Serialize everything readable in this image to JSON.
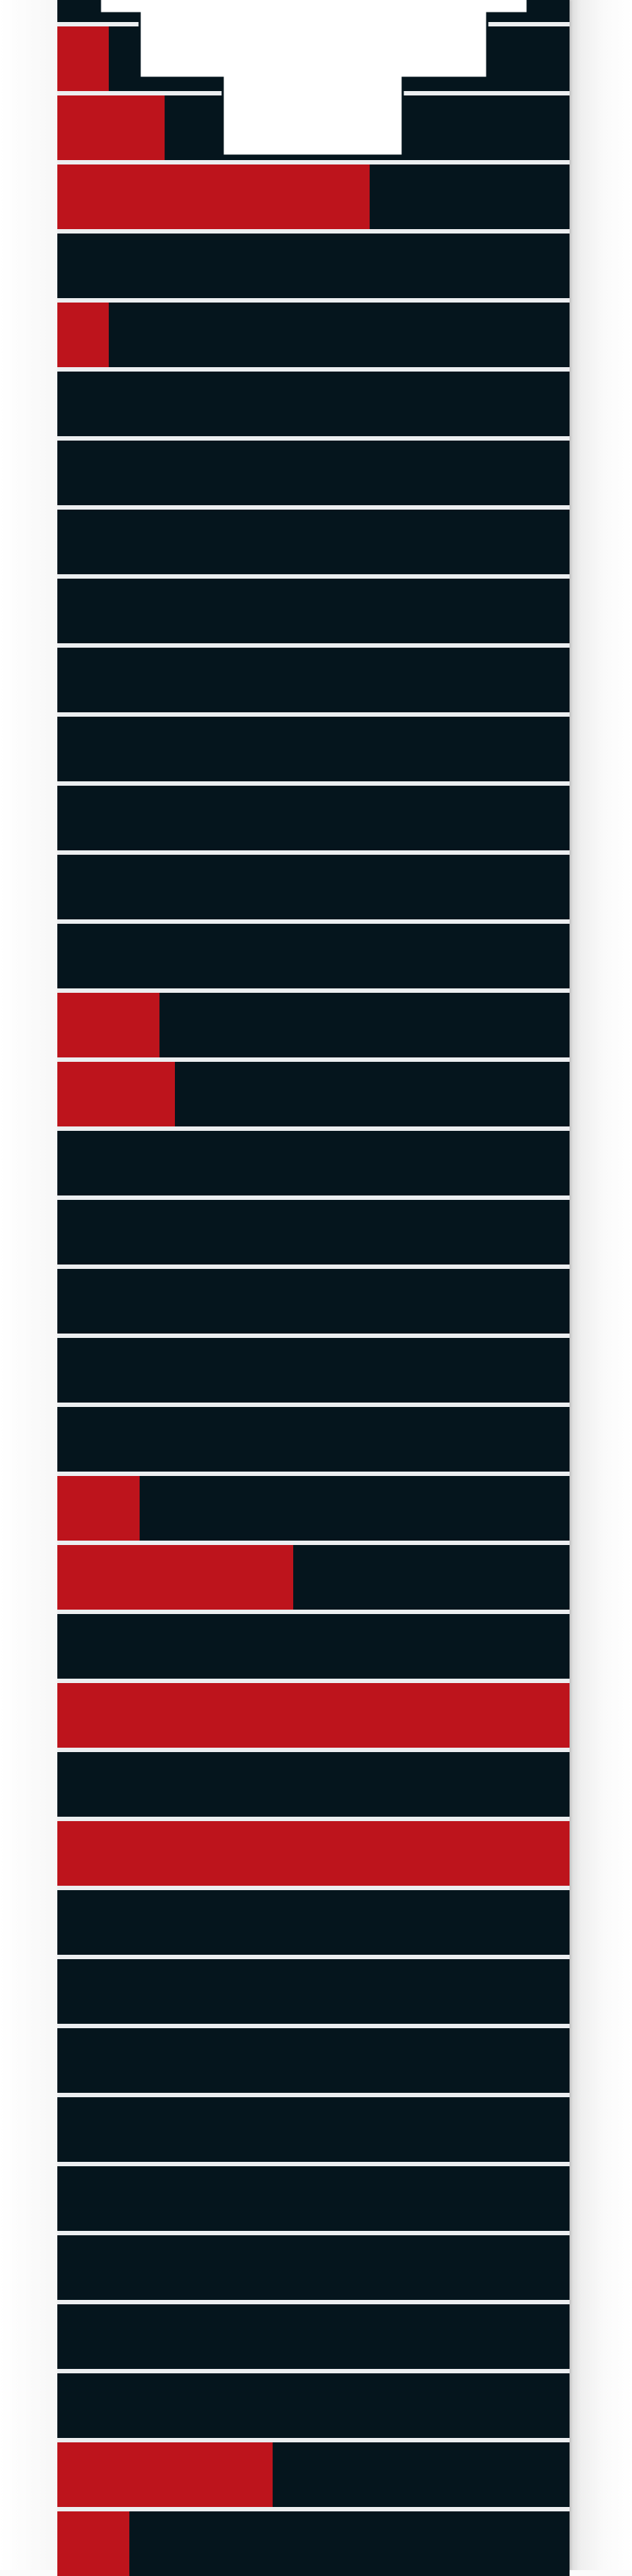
{
  "theme": {
    "strip_color": "#05151d",
    "fill_color": "#bd141c",
    "separator_color": "#eceef0"
  },
  "rows": [
    {
      "id": "row-1",
      "progress": 0.1
    },
    {
      "id": "row-2",
      "progress": 0.21
    },
    {
      "id": "row-3",
      "progress": 0.61
    },
    {
      "id": "row-4",
      "progress": 0.0
    },
    {
      "id": "row-5",
      "progress": 0.1
    },
    {
      "id": "row-6",
      "progress": 0.0
    },
    {
      "id": "row-7",
      "progress": 0.0
    },
    {
      "id": "row-8",
      "progress": 0.0
    },
    {
      "id": "row-9",
      "progress": 0.0
    },
    {
      "id": "row-10",
      "progress": 0.0
    },
    {
      "id": "row-11",
      "progress": 0.0
    },
    {
      "id": "row-12",
      "progress": 0.0
    },
    {
      "id": "row-13",
      "progress": 0.0
    },
    {
      "id": "row-14",
      "progress": 0.0
    },
    {
      "id": "row-15",
      "progress": 0.2
    },
    {
      "id": "row-16",
      "progress": 0.23
    },
    {
      "id": "row-17",
      "progress": 0.0
    },
    {
      "id": "row-18",
      "progress": 0.0
    },
    {
      "id": "row-19",
      "progress": 0.0
    },
    {
      "id": "row-20",
      "progress": 0.0
    },
    {
      "id": "row-21",
      "progress": 0.0
    },
    {
      "id": "row-22",
      "progress": 0.16
    },
    {
      "id": "row-23",
      "progress": 0.46
    },
    {
      "id": "row-24",
      "progress": 0.0
    },
    {
      "id": "row-25",
      "progress": 1.0
    },
    {
      "id": "row-26",
      "progress": 0.0
    },
    {
      "id": "row-27",
      "progress": 1.0
    },
    {
      "id": "row-28",
      "progress": 0.0
    },
    {
      "id": "row-29",
      "progress": 0.0
    },
    {
      "id": "row-30",
      "progress": 0.0
    },
    {
      "id": "row-31",
      "progress": 0.0
    },
    {
      "id": "row-32",
      "progress": 0.0
    },
    {
      "id": "row-33",
      "progress": 0.0
    },
    {
      "id": "row-34",
      "progress": 0.0
    },
    {
      "id": "row-35",
      "progress": 0.0
    },
    {
      "id": "row-36",
      "progress": 0.42
    },
    {
      "id": "row-37",
      "progress": 0.14
    }
  ]
}
